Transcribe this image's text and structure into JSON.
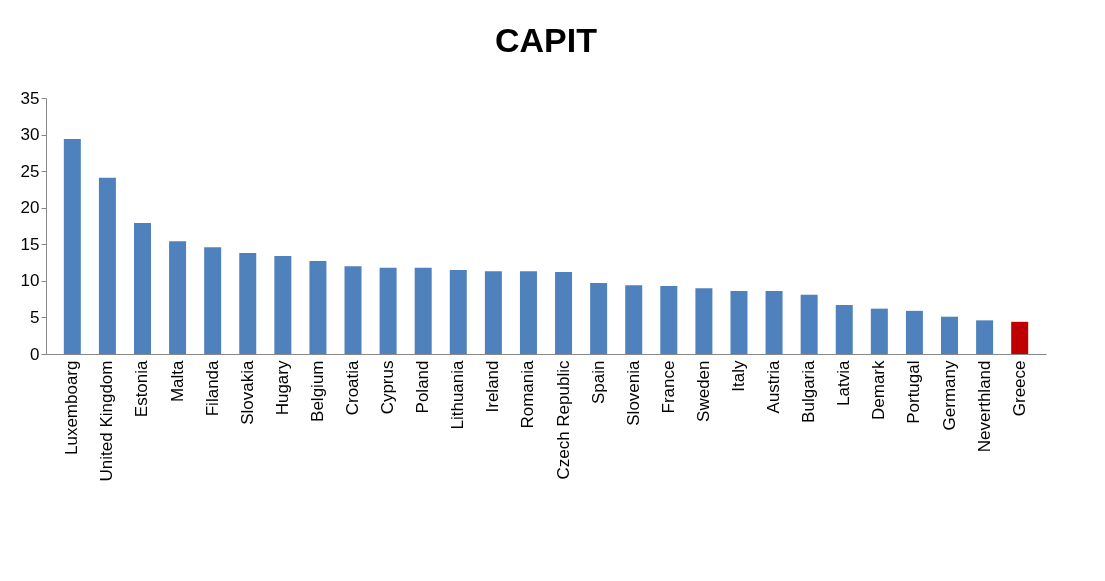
{
  "chart_data": {
    "type": "bar",
    "title": "CAPIT",
    "categories": [
      "Luxemboarg",
      "United Kingdom",
      "Estonia",
      "Malta",
      "Filanda",
      "Slovakia",
      "Hugary",
      "Belgium",
      "Croatia",
      "Cyprus",
      "Poland",
      "Lithuania",
      "Ireland",
      "Romania",
      "Czech Republic",
      "Spain",
      "Slovenia",
      "France",
      "Sweden",
      "Italy",
      "Austria",
      "Bulgaria",
      "Latvia",
      "Demark",
      "Portugal",
      "Germany",
      "Neverthland",
      "Greece"
    ],
    "values": [
      29.4,
      24.1,
      17.9,
      15.4,
      14.6,
      13.8,
      13.4,
      12.7,
      12.0,
      11.8,
      11.8,
      11.5,
      11.3,
      11.3,
      11.2,
      9.7,
      9.4,
      9.3,
      9.0,
      8.6,
      8.6,
      8.1,
      6.7,
      6.2,
      5.9,
      5.1,
      4.6,
      4.4
    ],
    "colors": [
      "#4f81bd",
      "#4f81bd",
      "#4f81bd",
      "#4f81bd",
      "#4f81bd",
      "#4f81bd",
      "#4f81bd",
      "#4f81bd",
      "#4f81bd",
      "#4f81bd",
      "#4f81bd",
      "#4f81bd",
      "#4f81bd",
      "#4f81bd",
      "#4f81bd",
      "#4f81bd",
      "#4f81bd",
      "#4f81bd",
      "#4f81bd",
      "#4f81bd",
      "#4f81bd",
      "#4f81bd",
      "#4f81bd",
      "#4f81bd",
      "#4f81bd",
      "#4f81bd",
      "#4f81bd",
      "#c00000"
    ],
    "ylim": [
      0,
      35
    ],
    "yticks": [
      0,
      5,
      10,
      15,
      20,
      25,
      30,
      35
    ],
    "grid": false
  }
}
